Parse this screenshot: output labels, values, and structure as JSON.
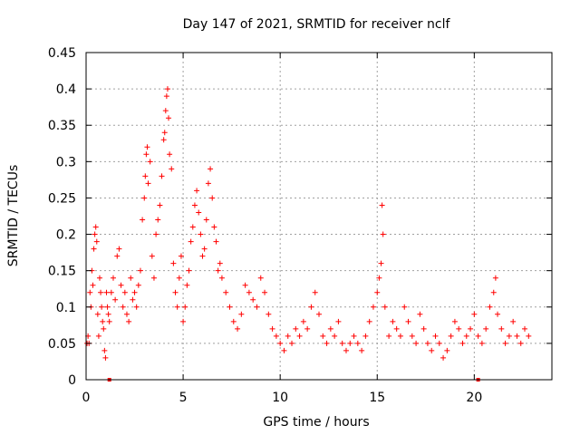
{
  "chart_data": {
    "type": "scatter",
    "title": "Day 147 of 2021, SRMTID for receiver nclf",
    "xlabel": "GPS time / hours",
    "ylabel": "SRMTID / TECUs",
    "xlim": [
      0,
      24
    ],
    "ylim": [
      0,
      0.45
    ],
    "x_ticks": [
      0,
      5,
      10,
      15,
      20
    ],
    "x_tick_labels": [
      "0",
      "5",
      "10",
      "15",
      "20"
    ],
    "y_ticks": [
      0,
      0.05,
      0.1,
      0.15,
      0.2,
      0.25,
      0.3,
      0.35,
      0.4,
      0.45
    ],
    "y_tick_labels": [
      "0",
      "0.05",
      "0.1",
      "0.15",
      "0.2",
      "0.25",
      "0.3",
      "0.35",
      "0.4",
      "0.45"
    ],
    "grid": true,
    "marker": "plus",
    "series": [
      {
        "color": "#ff0000",
        "points": [
          [
            0.05,
            0.05
          ],
          [
            0.1,
            0.06
          ],
          [
            0.15,
            0.05
          ],
          [
            0.2,
            0.12
          ],
          [
            0.25,
            0.1
          ],
          [
            0.3,
            0.15
          ],
          [
            0.35,
            0.13
          ],
          [
            0.4,
            0.18
          ],
          [
            0.45,
            0.2
          ],
          [
            0.5,
            0.21
          ],
          [
            0.55,
            0.19
          ],
          [
            0.6,
            0.09
          ],
          [
            0.65,
            0.06
          ],
          [
            0.7,
            0.14
          ],
          [
            0.75,
            0.12
          ],
          [
            0.8,
            0.1
          ],
          [
            0.85,
            0.08
          ],
          [
            0.9,
            0.07
          ],
          [
            0.95,
            0.04
          ],
          [
            1.0,
            0.03
          ],
          [
            1.05,
            0.12
          ],
          [
            1.1,
            0.1
          ],
          [
            1.15,
            0.09
          ],
          [
            1.2,
            0.08
          ],
          [
            1.3,
            0.12
          ],
          [
            1.4,
            0.14
          ],
          [
            1.5,
            0.11
          ],
          [
            1.6,
            0.17
          ],
          [
            1.7,
            0.18
          ],
          [
            1.8,
            0.13
          ],
          [
            1.9,
            0.1
          ],
          [
            2.0,
            0.12
          ],
          [
            2.1,
            0.09
          ],
          [
            2.2,
            0.08
          ],
          [
            2.3,
            0.14
          ],
          [
            2.4,
            0.11
          ],
          [
            2.5,
            0.12
          ],
          [
            2.6,
            0.1
          ],
          [
            2.7,
            0.13
          ],
          [
            2.8,
            0.15
          ],
          [
            2.9,
            0.22
          ],
          [
            3.0,
            0.25
          ],
          [
            3.05,
            0.28
          ],
          [
            3.1,
            0.31
          ],
          [
            3.15,
            0.32
          ],
          [
            3.2,
            0.27
          ],
          [
            3.3,
            0.3
          ],
          [
            3.4,
            0.17
          ],
          [
            3.5,
            0.14
          ],
          [
            3.6,
            0.2
          ],
          [
            3.7,
            0.22
          ],
          [
            3.8,
            0.24
          ],
          [
            3.9,
            0.28
          ],
          [
            4.0,
            0.33
          ],
          [
            4.05,
            0.34
          ],
          [
            4.1,
            0.37
          ],
          [
            4.15,
            0.39
          ],
          [
            4.2,
            0.4
          ],
          [
            4.25,
            0.36
          ],
          [
            4.3,
            0.31
          ],
          [
            4.4,
            0.29
          ],
          [
            4.5,
            0.16
          ],
          [
            4.6,
            0.12
          ],
          [
            4.7,
            0.1
          ],
          [
            4.8,
            0.14
          ],
          [
            4.9,
            0.17
          ],
          [
            5.0,
            0.08
          ],
          [
            5.1,
            0.1
          ],
          [
            5.2,
            0.13
          ],
          [
            5.3,
            0.15
          ],
          [
            5.4,
            0.19
          ],
          [
            5.5,
            0.21
          ],
          [
            5.6,
            0.24
          ],
          [
            5.7,
            0.26
          ],
          [
            5.8,
            0.23
          ],
          [
            5.9,
            0.2
          ],
          [
            6.0,
            0.17
          ],
          [
            6.1,
            0.18
          ],
          [
            6.2,
            0.22
          ],
          [
            6.3,
            0.27
          ],
          [
            6.4,
            0.29
          ],
          [
            6.5,
            0.25
          ],
          [
            6.6,
            0.21
          ],
          [
            6.7,
            0.19
          ],
          [
            6.8,
            0.15
          ],
          [
            6.9,
            0.16
          ],
          [
            7.0,
            0.14
          ],
          [
            7.2,
            0.12
          ],
          [
            7.4,
            0.1
          ],
          [
            7.6,
            0.08
          ],
          [
            7.8,
            0.07
          ],
          [
            8.0,
            0.09
          ],
          [
            8.2,
            0.13
          ],
          [
            8.4,
            0.12
          ],
          [
            8.6,
            0.11
          ],
          [
            8.8,
            0.1
          ],
          [
            9.0,
            0.14
          ],
          [
            9.2,
            0.12
          ],
          [
            9.4,
            0.09
          ],
          [
            9.6,
            0.07
          ],
          [
            9.8,
            0.06
          ],
          [
            10.0,
            0.05
          ],
          [
            10.2,
            0.04
          ],
          [
            10.4,
            0.06
          ],
          [
            10.6,
            0.05
          ],
          [
            10.8,
            0.07
          ],
          [
            11.0,
            0.06
          ],
          [
            11.2,
            0.08
          ],
          [
            11.4,
            0.07
          ],
          [
            11.6,
            0.1
          ],
          [
            11.8,
            0.12
          ],
          [
            12.0,
            0.09
          ],
          [
            12.2,
            0.06
          ],
          [
            12.4,
            0.05
          ],
          [
            12.6,
            0.07
          ],
          [
            12.8,
            0.06
          ],
          [
            13.0,
            0.08
          ],
          [
            13.2,
            0.05
          ],
          [
            13.4,
            0.04
          ],
          [
            13.6,
            0.05
          ],
          [
            13.8,
            0.06
          ],
          [
            14.0,
            0.05
          ],
          [
            14.2,
            0.04
          ],
          [
            14.4,
            0.06
          ],
          [
            14.6,
            0.08
          ],
          [
            14.8,
            0.1
          ],
          [
            15.0,
            0.12
          ],
          [
            15.1,
            0.14
          ],
          [
            15.2,
            0.16
          ],
          [
            15.25,
            0.24
          ],
          [
            15.3,
            0.2
          ],
          [
            15.4,
            0.1
          ],
          [
            15.6,
            0.06
          ],
          [
            15.8,
            0.08
          ],
          [
            16.0,
            0.07
          ],
          [
            16.2,
            0.06
          ],
          [
            16.4,
            0.1
          ],
          [
            16.6,
            0.08
          ],
          [
            16.8,
            0.06
          ],
          [
            17.0,
            0.05
          ],
          [
            17.2,
            0.09
          ],
          [
            17.4,
            0.07
          ],
          [
            17.6,
            0.05
          ],
          [
            17.8,
            0.04
          ],
          [
            18.0,
            0.06
          ],
          [
            18.2,
            0.05
          ],
          [
            18.4,
            0.03
          ],
          [
            18.6,
            0.04
          ],
          [
            18.8,
            0.06
          ],
          [
            19.0,
            0.08
          ],
          [
            19.2,
            0.07
          ],
          [
            19.4,
            0.05
          ],
          [
            19.6,
            0.06
          ],
          [
            19.8,
            0.07
          ],
          [
            20.0,
            0.09
          ],
          [
            20.2,
            0.06
          ],
          [
            20.4,
            0.05
          ],
          [
            20.6,
            0.07
          ],
          [
            20.8,
            0.1
          ],
          [
            21.0,
            0.12
          ],
          [
            21.1,
            0.14
          ],
          [
            21.2,
            0.09
          ],
          [
            21.4,
            0.07
          ],
          [
            21.6,
            0.05
          ],
          [
            21.8,
            0.06
          ],
          [
            22.0,
            0.08
          ],
          [
            22.2,
            0.06
          ],
          [
            22.4,
            0.05
          ],
          [
            22.6,
            0.07
          ],
          [
            22.8,
            0.06
          ]
        ]
      }
    ],
    "zero_markers": [
      1.2,
      20.2
    ]
  }
}
